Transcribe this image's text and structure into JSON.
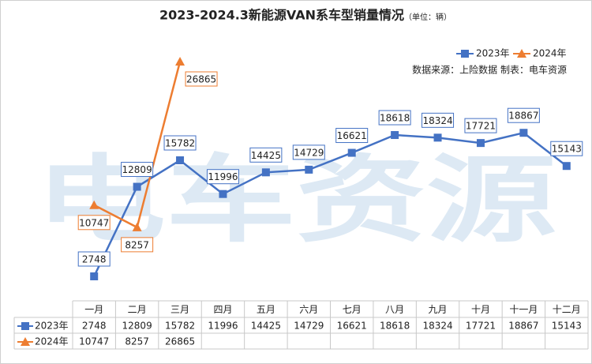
{
  "chart_data": {
    "type": "line",
    "title": "2023-2024.3新能源VAN系车型销量情况",
    "subtitle": "（单位：辆）",
    "annotation": "数据来源：上险数据 制表：电车资源",
    "watermark": "电车资源",
    "categories": [
      "一月",
      "二月",
      "三月",
      "四月",
      "五月",
      "六月",
      "七月",
      "八月",
      "九月",
      "十月",
      "十一月",
      "十二月"
    ],
    "series": [
      {
        "name": "2023年",
        "color": "#4472c4",
        "marker": "square",
        "values": [
          2748,
          12809,
          15782,
          11996,
          14425,
          14729,
          16621,
          18618,
          18324,
          17721,
          18867,
          15143
        ]
      },
      {
        "name": "2024年",
        "color": "#ed7d31",
        "marker": "triangle",
        "values": [
          10747,
          8257,
          26865,
          null,
          null,
          null,
          null,
          null,
          null,
          null,
          null,
          null
        ]
      }
    ],
    "legend": "top-right",
    "data_table": true
  }
}
